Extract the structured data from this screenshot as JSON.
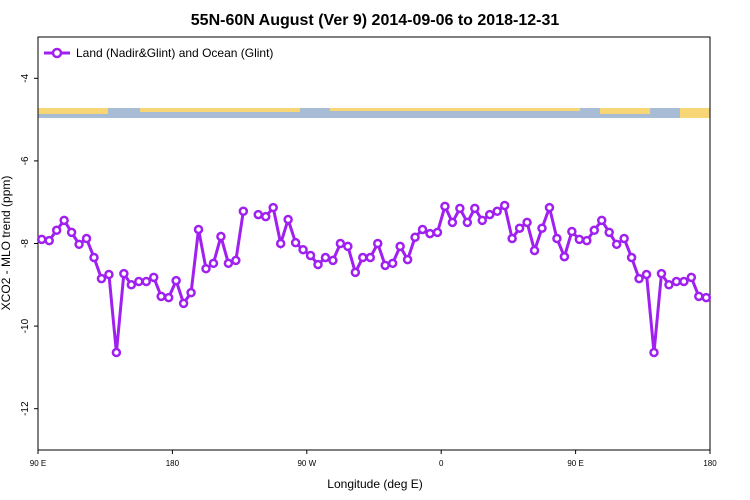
{
  "chart_data": {
    "type": "line",
    "title": "55N-60N August (Ver 9)   2014-09-06 to 2018-12-31",
    "x_label": "Longitude (deg E)",
    "y_label": "XCO2 - MLO trend (ppm)",
    "xlim": [
      90,
      540
    ],
    "ylim": [
      -13,
      -3
    ],
    "xticks": [
      {
        "value": 90,
        "label": "90 E"
      },
      180,
      {
        "value": 270,
        "label": "90 W"
      },
      {
        "value": 360,
        "label": "0"
      },
      {
        "value": 450,
        "label": "90 E"
      },
      {
        "value": 540,
        "label": "180"
      }
    ],
    "yticks": [
      -4,
      -6,
      -8,
      -10,
      -12
    ],
    "legend": "top-left",
    "x": [
      92.5,
      97.5,
      102.5,
      107.5,
      112.5,
      117.5,
      122.5,
      127.5,
      132.5,
      137.5,
      142.5,
      147.5,
      152.5,
      157.5,
      162.5,
      167.5,
      172.5,
      177.5,
      182.5,
      187.5,
      192.5,
      197.5,
      202.5,
      207.5,
      212.5,
      217.5,
      222.5,
      227.5,
      232.5,
      237.5,
      242.5,
      247.5,
      252.5,
      257.5,
      262.5,
      267.5,
      272.5,
      277.5,
      282.5,
      287.5,
      292.5,
      297.5,
      302.5,
      307.5,
      312.5,
      317.5,
      322.5,
      327.5,
      332.5,
      337.5,
      342.5,
      347.5,
      352.5,
      357.5,
      362.5,
      367.5,
      372.5,
      377.5,
      382.5,
      387.5,
      392.5,
      397.5,
      402.5,
      407.5,
      412.5,
      417.5,
      422.5,
      427.5,
      432.5,
      437.5,
      442.5,
      447.5,
      452.5,
      457.5,
      462.5,
      467.5,
      472.5,
      477.5,
      482.5,
      487.5,
      492.5,
      497.5,
      502.5,
      507.5,
      512.5,
      517.5,
      522.5,
      527.5,
      532.5,
      537.5
    ],
    "series": [
      {
        "name": "Land (Nadir&Glint) and Ocean (Glint)",
        "color": "#a020f0",
        "values": [
          -7.9,
          -7.93,
          -7.68,
          -7.44,
          -7.73,
          -8.02,
          -7.88,
          -8.34,
          -8.85,
          -8.75,
          -10.64,
          -8.73,
          -9.0,
          -8.92,
          -8.92,
          -8.82,
          -9.28,
          -9.31,
          -8.9,
          -9.45,
          -9.19,
          -7.66,
          -8.61,
          -8.48,
          -7.83,
          -8.48,
          -8.41,
          -7.22,
          null,
          -7.3,
          -7.35,
          -7.13,
          -8.0,
          -7.42,
          -7.98,
          -8.15,
          -8.29,
          -8.51,
          -8.34,
          -8.41,
          -8.0,
          -8.07,
          -8.7,
          -8.34,
          -8.34,
          -8.0,
          -8.53,
          -8.48,
          -8.07,
          -8.39,
          -7.85,
          -7.66,
          -7.76,
          -7.73,
          -7.1,
          -7.49,
          -7.15,
          -7.49,
          -7.15,
          -7.44,
          -7.3,
          -7.22,
          -7.08,
          -7.88,
          -7.63,
          -7.49,
          -8.17,
          -7.63,
          -7.13,
          -7.88,
          -8.32,
          -7.71,
          -7.9,
          -7.93,
          -7.68,
          -7.44,
          -7.73,
          -8.02,
          -7.88,
          -8.34,
          -8.85,
          -8.75,
          -10.64,
          -8.73,
          -9.0,
          -8.92,
          -8.92,
          -8.82,
          -9.28,
          -9.31
        ]
      }
    ]
  }
}
